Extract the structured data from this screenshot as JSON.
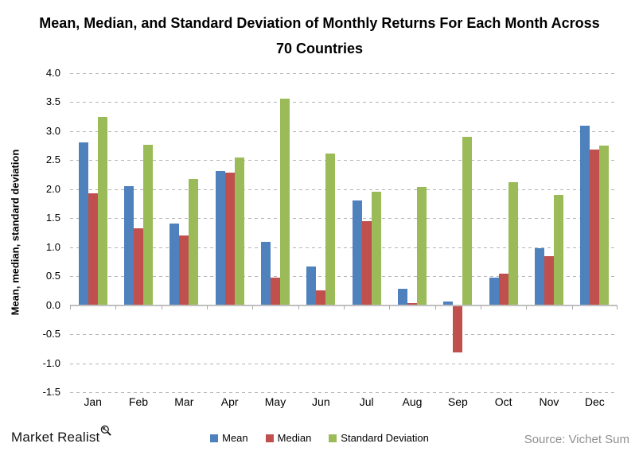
{
  "header": {
    "title": "Mean, Median, and Standard Deviation of Monthly Returns For Each Month Across 70 Countries"
  },
  "chart_data": {
    "type": "bar",
    "categories": [
      "Jan",
      "Feb",
      "Mar",
      "Apr",
      "May",
      "Jun",
      "Jul",
      "Aug",
      "Sep",
      "Oct",
      "Nov",
      "Dec"
    ],
    "series": [
      {
        "name": "Mean",
        "color": "#4F81BD",
        "values": [
          2.8,
          2.05,
          1.41,
          2.31,
          1.09,
          0.67,
          1.8,
          0.28,
          0.06,
          0.48,
          0.98,
          3.09
        ]
      },
      {
        "name": "Median",
        "color": "#C0504D",
        "values": [
          1.93,
          1.33,
          1.2,
          2.28,
          0.48,
          0.25,
          1.45,
          0.03,
          -0.82,
          0.54,
          0.84,
          2.69
        ]
      },
      {
        "name": "Standard Deviation",
        "color": "#9BBB59",
        "values": [
          3.25,
          2.77,
          2.18,
          2.55,
          3.56,
          2.62,
          1.95,
          2.04,
          2.9,
          2.12,
          1.9,
          2.75
        ]
      }
    ],
    "xlabel": "",
    "ylabel": "Mean, median, standard deviation",
    "ylim": [
      -1.5,
      4.0
    ],
    "ytick_step": 0.5,
    "grid": "dashed horizontal",
    "legend_position": "bottom"
  },
  "footer": {
    "brand": "Market Realist",
    "magnifier_icon": "magnifier-icon",
    "source": "Source: Vichet Sum"
  }
}
